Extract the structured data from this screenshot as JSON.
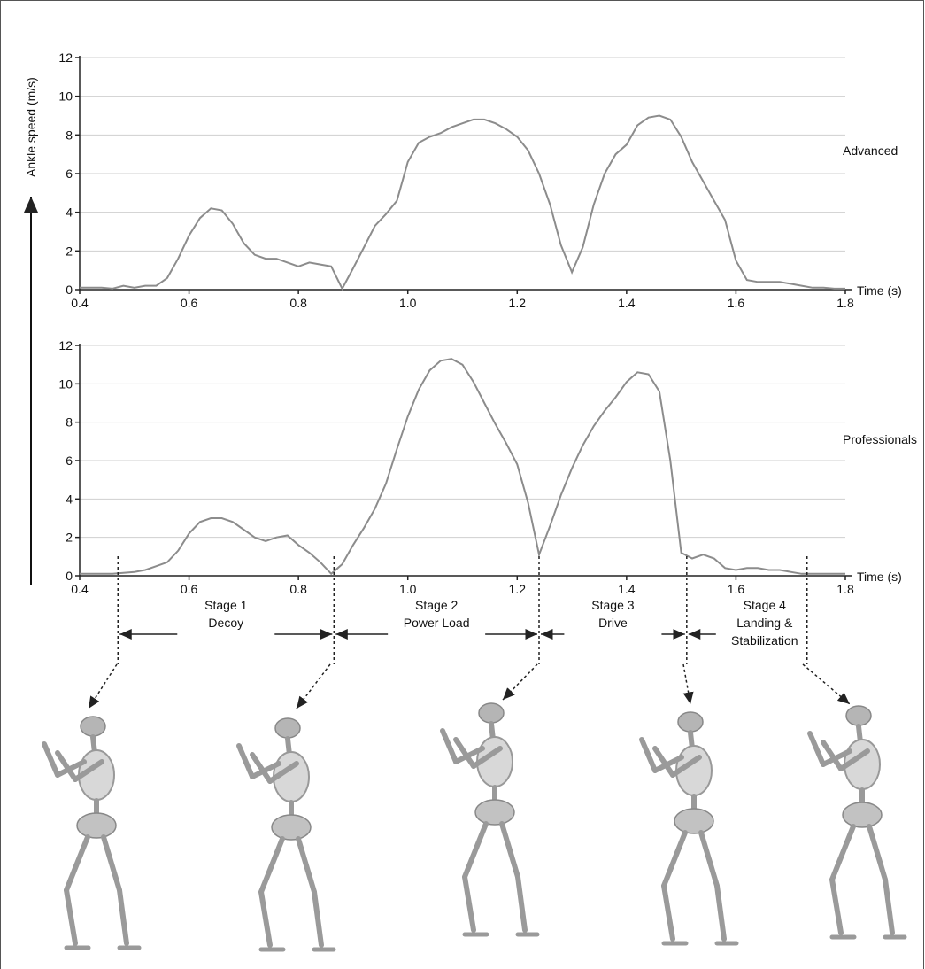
{
  "chart_data": [
    {
      "type": "line",
      "y_label": "Ankle speed (m/s)",
      "x_label": "Time (s)",
      "xlim": [
        0.4,
        1.8
      ],
      "ylim": [
        0,
        12
      ],
      "xticks": [
        0.4,
        0.6,
        0.8,
        {
          "value": 1,
          "label": "1.0"
        },
        1.2,
        1.4,
        1.6,
        1.8
      ],
      "yticks": [
        0,
        2,
        4,
        6,
        8,
        10,
        12
      ],
      "grid": true,
      "x": [
        0.4,
        0.42,
        0.44,
        0.46,
        0.48,
        0.5,
        0.52,
        0.54,
        0.56,
        0.58,
        0.6,
        0.62,
        0.64,
        0.66,
        0.68,
        0.7,
        0.72,
        0.74,
        0.76,
        0.78,
        0.8,
        0.82,
        0.84,
        0.86,
        0.88,
        0.9,
        0.92,
        0.94,
        0.96,
        0.98,
        1,
        1.02,
        1.04,
        1.06,
        1.08,
        1.1,
        1.12,
        1.14,
        1.16,
        1.18,
        1.2,
        1.22,
        1.24,
        1.26,
        1.28,
        1.3,
        1.32,
        1.34,
        1.36,
        1.38,
        1.4,
        1.42,
        1.44,
        1.46,
        1.48,
        1.5,
        1.52,
        1.54,
        1.56,
        1.58,
        1.6,
        1.62,
        1.64,
        1.66,
        1.68,
        1.7,
        1.72,
        1.74,
        1.76,
        1.78,
        1.8
      ],
      "series": [
        {
          "name": "Advanced",
          "color": "#8c8c8c",
          "values": [
            0.1,
            0.1,
            0.1,
            0.05,
            0.2,
            0.1,
            0.2,
            0.2,
            0.6,
            1.6,
            2.8,
            3.7,
            4.2,
            4.1,
            3.4,
            2.4,
            1.8,
            1.6,
            1.6,
            1.4,
            1.2,
            1.4,
            1.3,
            1.2,
            0.05,
            1.1,
            2.2,
            3.3,
            3.9,
            4.6,
            6.6,
            7.6,
            7.9,
            8.1,
            8.4,
            8.6,
            8.8,
            8.8,
            8.6,
            8.3,
            7.9,
            7.2,
            6.0,
            4.4,
            2.3,
            0.9,
            2.2,
            4.4,
            6.0,
            7.0,
            7.5,
            8.5,
            8.9,
            9.0,
            8.8,
            7.9,
            6.6,
            5.6,
            4.6,
            3.6,
            1.5,
            0.5,
            0.4,
            0.4,
            0.4,
            0.3,
            0.2,
            0.1,
            0.1,
            0.05,
            0.05
          ]
        }
      ]
    },
    {
      "type": "line",
      "x_label": "Time (s)",
      "xlim": [
        0.4,
        1.8
      ],
      "ylim": [
        0,
        12
      ],
      "xticks": [
        0.4,
        0.6,
        0.8,
        {
          "value": 1,
          "label": "1.0"
        },
        1.2,
        1.4,
        1.6,
        1.8
      ],
      "yticks": [
        0,
        2,
        4,
        6,
        8,
        10,
        12
      ],
      "grid": true,
      "x": [
        0.4,
        0.42,
        0.44,
        0.46,
        0.48,
        0.5,
        0.52,
        0.54,
        0.56,
        0.58,
        0.6,
        0.62,
        0.64,
        0.66,
        0.68,
        0.7,
        0.72,
        0.74,
        0.76,
        0.78,
        0.8,
        0.82,
        0.84,
        0.86,
        0.88,
        0.9,
        0.92,
        0.94,
        0.96,
        0.98,
        1,
        1.02,
        1.04,
        1.06,
        1.08,
        1.1,
        1.12,
        1.14,
        1.16,
        1.18,
        1.2,
        1.22,
        1.24,
        1.26,
        1.28,
        1.3,
        1.32,
        1.34,
        1.36,
        1.38,
        1.4,
        1.42,
        1.44,
        1.46,
        1.48,
        1.5,
        1.52,
        1.54,
        1.56,
        1.58,
        1.6,
        1.62,
        1.64,
        1.66,
        1.68,
        1.7,
        1.72,
        1.74,
        1.76,
        1.78,
        1.8
      ],
      "series": [
        {
          "name": "Professionals",
          "color": "#8c8c8c",
          "values": [
            0.1,
            0.1,
            0.1,
            0.1,
            0.15,
            0.2,
            0.3,
            0.5,
            0.7,
            1.3,
            2.2,
            2.8,
            3.0,
            3.0,
            2.8,
            2.4,
            2.0,
            1.8,
            2.0,
            2.1,
            1.6,
            1.2,
            0.7,
            0.1,
            0.6,
            1.6,
            2.5,
            3.5,
            4.8,
            6.6,
            8.3,
            9.7,
            10.7,
            11.2,
            11.3,
            11.0,
            10.1,
            9.0,
            7.9,
            6.9,
            5.8,
            3.8,
            1.1,
            2.6,
            4.2,
            5.6,
            6.8,
            7.8,
            8.6,
            9.3,
            10.1,
            10.6,
            10.5,
            9.6,
            6.0,
            1.2,
            0.9,
            1.1,
            0.9,
            0.4,
            0.3,
            0.4,
            0.4,
            0.3,
            0.3,
            0.2,
            0.1,
            0.1,
            0.1,
            0.1,
            0.1
          ]
        }
      ],
      "stage_boundaries": [
        0.47,
        0.865,
        1.24,
        1.51,
        1.73
      ],
      "stages": [
        [
          "Stage 1",
          "Decoy"
        ],
        [
          "Stage 2",
          "Power Load"
        ],
        [
          "Stage 3",
          "Drive"
        ],
        [
          "Stage 4",
          "Landing &",
          "Stabilization"
        ]
      ]
    }
  ]
}
